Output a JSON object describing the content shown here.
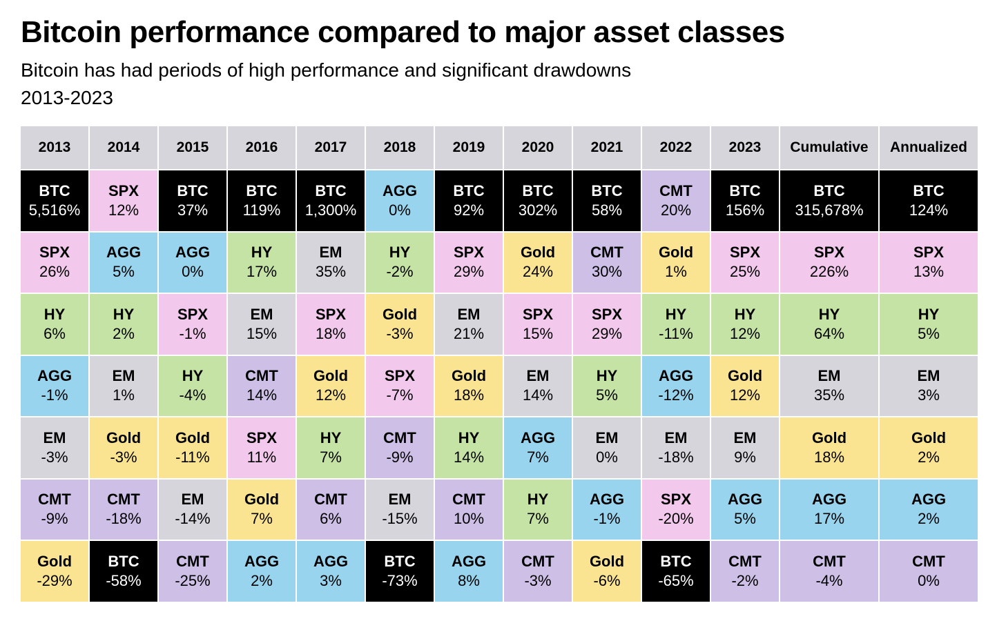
{
  "title": "Bitcoin performance compared to major asset classes",
  "subtitle": "Bitcoin has had periods of high performance and significant drawdowns",
  "date_range": "2013-2023",
  "colors": {
    "BTC": "#000000",
    "SPX": "#f2c9ec",
    "AGG": "#98d4ee",
    "HY": "#c5e3a5",
    "EM": "#d6d5dc",
    "Gold": "#fbe491",
    "CMT": "#cdbfe6",
    "header": "#d6d5dc"
  },
  "chart_data": {
    "type": "table",
    "columns": [
      "2013",
      "2014",
      "2015",
      "2016",
      "2017",
      "2018",
      "2019",
      "2020",
      "2021",
      "2022",
      "2023",
      "Cumulative",
      "Annualized"
    ],
    "rankings": [
      [
        {
          "asset": "BTC",
          "value": "5,516%"
        },
        {
          "asset": "SPX",
          "value": "26%"
        },
        {
          "asset": "HY",
          "value": "6%"
        },
        {
          "asset": "AGG",
          "value": "-1%"
        },
        {
          "asset": "EM",
          "value": "-3%"
        },
        {
          "asset": "CMT",
          "value": "-9%"
        },
        {
          "asset": "Gold",
          "value": "-29%"
        }
      ],
      [
        {
          "asset": "SPX",
          "value": "12%"
        },
        {
          "asset": "AGG",
          "value": "5%"
        },
        {
          "asset": "HY",
          "value": "2%"
        },
        {
          "asset": "EM",
          "value": "1%"
        },
        {
          "asset": "Gold",
          "value": "-3%"
        },
        {
          "asset": "CMT",
          "value": "-18%"
        },
        {
          "asset": "BTC",
          "value": "-58%"
        }
      ],
      [
        {
          "asset": "BTC",
          "value": "37%"
        },
        {
          "asset": "AGG",
          "value": "0%"
        },
        {
          "asset": "SPX",
          "value": "-1%"
        },
        {
          "asset": "HY",
          "value": "-4%"
        },
        {
          "asset": "Gold",
          "value": "-11%"
        },
        {
          "asset": "EM",
          "value": "-14%"
        },
        {
          "asset": "CMT",
          "value": "-25%"
        }
      ],
      [
        {
          "asset": "BTC",
          "value": "119%"
        },
        {
          "asset": "HY",
          "value": "17%"
        },
        {
          "asset": "EM",
          "value": "15%"
        },
        {
          "asset": "CMT",
          "value": "14%"
        },
        {
          "asset": "SPX",
          "value": "11%"
        },
        {
          "asset": "Gold",
          "value": "7%"
        },
        {
          "asset": "AGG",
          "value": "2%"
        }
      ],
      [
        {
          "asset": "BTC",
          "value": "1,300%"
        },
        {
          "asset": "EM",
          "value": "35%"
        },
        {
          "asset": "SPX",
          "value": "18%"
        },
        {
          "asset": "Gold",
          "value": "12%"
        },
        {
          "asset": "HY",
          "value": "7%"
        },
        {
          "asset": "CMT",
          "value": "6%"
        },
        {
          "asset": "AGG",
          "value": "3%"
        }
      ],
      [
        {
          "asset": "AGG",
          "value": "0%"
        },
        {
          "asset": "HY",
          "value": "-2%"
        },
        {
          "asset": "Gold",
          "value": "-3%"
        },
        {
          "asset": "SPX",
          "value": "-7%"
        },
        {
          "asset": "CMT",
          "value": "-9%"
        },
        {
          "asset": "EM",
          "value": "-15%"
        },
        {
          "asset": "BTC",
          "value": "-73%"
        }
      ],
      [
        {
          "asset": "BTC",
          "value": "92%"
        },
        {
          "asset": "SPX",
          "value": "29%"
        },
        {
          "asset": "EM",
          "value": "21%"
        },
        {
          "asset": "Gold",
          "value": "18%"
        },
        {
          "asset": "HY",
          "value": "14%"
        },
        {
          "asset": "CMT",
          "value": "10%"
        },
        {
          "asset": "AGG",
          "value": "8%"
        }
      ],
      [
        {
          "asset": "BTC",
          "value": "302%"
        },
        {
          "asset": "Gold",
          "value": "24%"
        },
        {
          "asset": "SPX",
          "value": "15%"
        },
        {
          "asset": "EM",
          "value": "14%"
        },
        {
          "asset": "AGG",
          "value": "7%"
        },
        {
          "asset": "HY",
          "value": "7%"
        },
        {
          "asset": "CMT",
          "value": "-3%"
        }
      ],
      [
        {
          "asset": "BTC",
          "value": "58%"
        },
        {
          "asset": "CMT",
          "value": "30%"
        },
        {
          "asset": "SPX",
          "value": "29%"
        },
        {
          "asset": "HY",
          "value": "5%"
        },
        {
          "asset": "EM",
          "value": "0%"
        },
        {
          "asset": "AGG",
          "value": "-1%"
        },
        {
          "asset": "Gold",
          "value": "-6%"
        }
      ],
      [
        {
          "asset": "CMT",
          "value": "20%"
        },
        {
          "asset": "Gold",
          "value": "1%"
        },
        {
          "asset": "HY",
          "value": "-11%"
        },
        {
          "asset": "AGG",
          "value": "-12%"
        },
        {
          "asset": "EM",
          "value": "-18%"
        },
        {
          "asset": "SPX",
          "value": "-20%"
        },
        {
          "asset": "BTC",
          "value": "-65%"
        }
      ],
      [
        {
          "asset": "BTC",
          "value": "156%"
        },
        {
          "asset": "SPX",
          "value": "25%"
        },
        {
          "asset": "HY",
          "value": "12%"
        },
        {
          "asset": "Gold",
          "value": "12%"
        },
        {
          "asset": "EM",
          "value": "9%"
        },
        {
          "asset": "AGG",
          "value": "5%"
        },
        {
          "asset": "CMT",
          "value": "-2%"
        }
      ],
      [
        {
          "asset": "BTC",
          "value": "315,678%"
        },
        {
          "asset": "SPX",
          "value": "226%"
        },
        {
          "asset": "HY",
          "value": "64%"
        },
        {
          "asset": "EM",
          "value": "35%"
        },
        {
          "asset": "Gold",
          "value": "18%"
        },
        {
          "asset": "AGG",
          "value": "17%"
        },
        {
          "asset": "CMT",
          "value": "-4%"
        }
      ],
      [
        {
          "asset": "BTC",
          "value": "124%"
        },
        {
          "asset": "SPX",
          "value": "13%"
        },
        {
          "asset": "HY",
          "value": "5%"
        },
        {
          "asset": "EM",
          "value": "3%"
        },
        {
          "asset": "Gold",
          "value": "2%"
        },
        {
          "asset": "AGG",
          "value": "2%"
        },
        {
          "asset": "CMT",
          "value": "0%"
        }
      ]
    ]
  }
}
